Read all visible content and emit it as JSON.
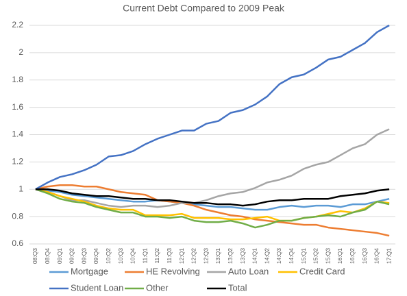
{
  "chart_data": {
    "type": "line",
    "title": "Current Debt Compared to 2009 Peak",
    "categories": [
      "08:Q3",
      "08:Q4",
      "09:Q1",
      "09:Q2",
      "09:Q3",
      "09:Q4",
      "10:Q2",
      "10:Q3",
      "10:Q4",
      "11:Q1",
      "11:Q2",
      "11:Q3",
      "12:Q1",
      "12:Q2",
      "12:Q3",
      "13:Q1",
      "13:Q2",
      "13:Q3",
      "14:Q1",
      "14:Q2",
      "14:Q3",
      "14:Q4",
      "15:Q1",
      "15:Q2",
      "15:Q3",
      "16:Q1",
      "16:Q2",
      "16:Q3",
      "16:Q4",
      "17:Q1"
    ],
    "series": [
      {
        "name": "Mortgage",
        "color": "#5b9bd5",
        "values": [
          1,
          0.99,
          0.98,
          0.96,
          0.95,
          0.94,
          0.93,
          0.92,
          0.91,
          0.91,
          0.92,
          0.91,
          0.9,
          0.89,
          0.88,
          0.87,
          0.87,
          0.86,
          0.85,
          0.85,
          0.87,
          0.88,
          0.87,
          0.88,
          0.88,
          0.87,
          0.89,
          0.89,
          0.91,
          0.93
        ]
      },
      {
        "name": "HE Revolving",
        "color": "#ed7d31",
        "values": [
          1,
          1.02,
          1.03,
          1.03,
          1.02,
          1.02,
          1.0,
          0.98,
          0.97,
          0.96,
          0.92,
          0.91,
          0.9,
          0.88,
          0.85,
          0.83,
          0.81,
          0.8,
          0.78,
          0.77,
          0.76,
          0.75,
          0.74,
          0.74,
          0.72,
          0.71,
          0.7,
          0.69,
          0.68,
          0.66
        ]
      },
      {
        "name": "Auto Loan",
        "color": "#a5a5a5",
        "values": [
          1,
          0.98,
          0.95,
          0.92,
          0.92,
          0.9,
          0.88,
          0.87,
          0.88,
          0.88,
          0.87,
          0.88,
          0.9,
          0.9,
          0.92,
          0.95,
          0.97,
          0.98,
          1.01,
          1.05,
          1.07,
          1.1,
          1.15,
          1.18,
          1.2,
          1.25,
          1.3,
          1.33,
          1.4,
          1.44
        ]
      },
      {
        "name": "Credit Card",
        "color": "#ffc000",
        "values": [
          1,
          0.98,
          0.95,
          0.93,
          0.91,
          0.88,
          0.86,
          0.85,
          0.85,
          0.81,
          0.81,
          0.81,
          0.82,
          0.79,
          0.79,
          0.79,
          0.78,
          0.78,
          0.79,
          0.8,
          0.77,
          0.77,
          0.79,
          0.8,
          0.82,
          0.84,
          0.83,
          0.86,
          0.91,
          0.9
        ]
      },
      {
        "name": "Student Loan",
        "color": "#4472c4",
        "values": [
          1,
          1.05,
          1.09,
          1.11,
          1.14,
          1.18,
          1.24,
          1.25,
          1.28,
          1.33,
          1.37,
          1.4,
          1.43,
          1.43,
          1.48,
          1.5,
          1.56,
          1.58,
          1.62,
          1.68,
          1.77,
          1.82,
          1.84,
          1.89,
          1.95,
          1.97,
          2.02,
          2.07,
          2.15,
          2.2
        ]
      },
      {
        "name": "Other",
        "color": "#70ad47",
        "values": [
          1,
          0.97,
          0.93,
          0.91,
          0.9,
          0.87,
          0.85,
          0.83,
          0.83,
          0.8,
          0.8,
          0.79,
          0.8,
          0.77,
          0.76,
          0.76,
          0.77,
          0.75,
          0.72,
          0.74,
          0.77,
          0.77,
          0.79,
          0.8,
          0.81,
          0.8,
          0.83,
          0.85,
          0.91,
          0.89
        ]
      },
      {
        "name": "Total",
        "color": "#000000",
        "values": [
          1,
          1.0,
          0.99,
          0.97,
          0.96,
          0.95,
          0.95,
          0.94,
          0.93,
          0.93,
          0.92,
          0.92,
          0.91,
          0.9,
          0.9,
          0.89,
          0.89,
          0.88,
          0.89,
          0.91,
          0.92,
          0.92,
          0.93,
          0.93,
          0.93,
          0.95,
          0.96,
          0.97,
          0.99,
          1.0
        ]
      }
    ],
    "ylim": [
      0.6,
      2.2
    ],
    "yticks": [
      0.6,
      0.8,
      1,
      1.2,
      1.4,
      1.6,
      1.8,
      2,
      2.2
    ],
    "grid": true
  }
}
